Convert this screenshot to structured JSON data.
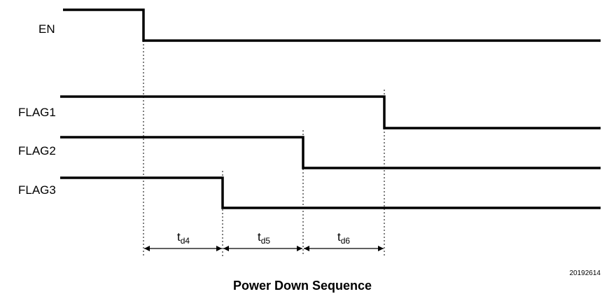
{
  "signals": [
    {
      "name": "EN"
    },
    {
      "name": "FLAG1"
    },
    {
      "name": "FLAG2"
    },
    {
      "name": "FLAG3"
    }
  ],
  "delays": [
    {
      "main": "t",
      "sub": "d4"
    },
    {
      "main": "t",
      "sub": "d5"
    },
    {
      "main": "t",
      "sub": "d6"
    }
  ],
  "figure_id": "20192614",
  "caption": "Power Down Sequence"
}
